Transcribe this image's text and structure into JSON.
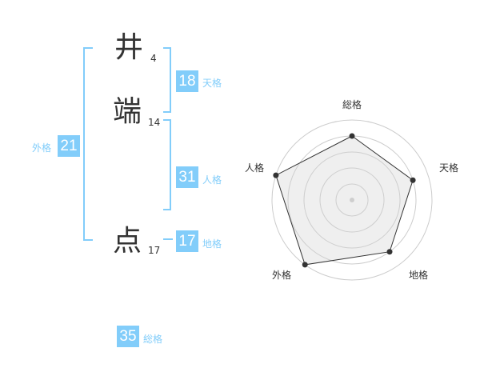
{
  "name": {
    "chars": [
      {
        "char": "井",
        "strokes": "4"
      },
      {
        "char": "端",
        "strokes": "14"
      },
      {
        "char": "点",
        "strokes": "17"
      }
    ]
  },
  "kakusu": {
    "tenkaku": {
      "value": "18",
      "label": "天格"
    },
    "jinkaku": {
      "value": "31",
      "label": "人格"
    },
    "chikaku": {
      "value": "17",
      "label": "地格"
    },
    "gaikaku": {
      "value": "21",
      "label": "外格"
    },
    "soukaku": {
      "value": "35",
      "label": "総格"
    }
  },
  "accent_color": "#82cdfa",
  "chart_data": {
    "type": "radar",
    "categories": [
      "総格",
      "天格",
      "地格",
      "外格",
      "人格"
    ],
    "values": [
      4,
      4,
      4,
      5,
      5
    ],
    "range": [
      0,
      5
    ],
    "rings": 5
  }
}
